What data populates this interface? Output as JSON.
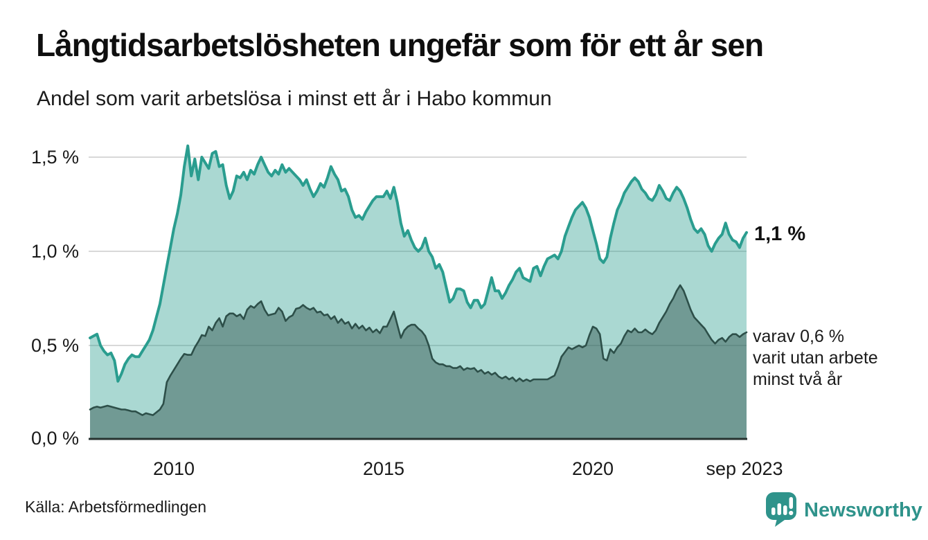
{
  "header": {
    "title": "Långtidsarbetslösheten ungefär som för ett år sen",
    "subtitle": "Andel som varit arbetslösa i minst ett år i Habo kommun"
  },
  "chart_data": {
    "type": "area",
    "title": "Långtidsarbetslösheten ungefär som för ett år sen",
    "subtitle": "Andel som varit arbetslösa i minst ett år i Habo kommun",
    "unit": "%",
    "frequency": "monthly",
    "x_start": "2008-01",
    "x_end": "2023-09",
    "ylim": [
      0,
      1.6
    ],
    "grid": true,
    "y_ticks": [
      "0,0 %",
      "0,5 %",
      "1,0 %",
      "1,5 %"
    ],
    "y_tick_values": [
      0,
      0.5,
      1.0,
      1.5
    ],
    "x_ticks": [
      "2010",
      "2015",
      "2020",
      "sep 2023"
    ],
    "series": [
      {
        "name": "Andel arbetslösa minst ett år",
        "end_value": 1.1,
        "values": [
          0.54,
          0.55,
          0.56,
          0.5,
          0.47,
          0.45,
          0.46,
          0.42,
          0.31,
          0.35,
          0.4,
          0.43,
          0.45,
          0.44,
          0.44,
          0.47,
          0.5,
          0.53,
          0.58,
          0.65,
          0.72,
          0.82,
          0.92,
          1.02,
          1.12,
          1.2,
          1.3,
          1.45,
          1.56,
          1.4,
          1.49,
          1.38,
          1.5,
          1.47,
          1.44,
          1.52,
          1.53,
          1.45,
          1.46,
          1.35,
          1.28,
          1.32,
          1.4,
          1.39,
          1.42,
          1.38,
          1.43,
          1.41,
          1.46,
          1.5,
          1.46,
          1.42,
          1.4,
          1.43,
          1.41,
          1.46,
          1.42,
          1.44,
          1.42,
          1.4,
          1.38,
          1.35,
          1.38,
          1.33,
          1.29,
          1.32,
          1.36,
          1.34,
          1.39,
          1.45,
          1.41,
          1.38,
          1.32,
          1.33,
          1.29,
          1.22,
          1.18,
          1.19,
          1.17,
          1.21,
          1.24,
          1.27,
          1.29,
          1.29,
          1.29,
          1.32,
          1.28,
          1.34,
          1.26,
          1.15,
          1.08,
          1.11,
          1.06,
          1.02,
          1.0,
          1.02,
          1.07,
          1.0,
          0.97,
          0.91,
          0.93,
          0.89,
          0.81,
          0.73,
          0.75,
          0.8,
          0.8,
          0.79,
          0.73,
          0.7,
          0.74,
          0.74,
          0.7,
          0.72,
          0.79,
          0.86,
          0.79,
          0.79,
          0.75,
          0.78,
          0.82,
          0.85,
          0.89,
          0.91,
          0.86,
          0.85,
          0.84,
          0.91,
          0.92,
          0.87,
          0.92,
          0.96,
          0.97,
          0.98,
          0.96,
          1.0,
          1.08,
          1.13,
          1.18,
          1.22,
          1.24,
          1.26,
          1.23,
          1.18,
          1.11,
          1.04,
          0.96,
          0.94,
          0.97,
          1.07,
          1.15,
          1.22,
          1.26,
          1.31,
          1.34,
          1.37,
          1.39,
          1.37,
          1.33,
          1.31,
          1.28,
          1.27,
          1.3,
          1.35,
          1.32,
          1.28,
          1.27,
          1.31,
          1.34,
          1.32,
          1.28,
          1.23,
          1.17,
          1.12,
          1.1,
          1.12,
          1.09,
          1.03,
          1.0,
          1.04,
          1.07,
          1.09,
          1.15,
          1.09,
          1.06,
          1.05,
          1.02,
          1.07,
          1.1
        ]
      },
      {
        "name": "varav utan arbete minst två år",
        "end_value": 0.6,
        "values": [
          0.16,
          0.17,
          0.175,
          0.17,
          0.175,
          0.18,
          0.175,
          0.17,
          0.165,
          0.16,
          0.16,
          0.155,
          0.15,
          0.15,
          0.14,
          0.13,
          0.14,
          0.135,
          0.13,
          0.145,
          0.16,
          0.19,
          0.305,
          0.34,
          0.37,
          0.4,
          0.43,
          0.455,
          0.45,
          0.45,
          0.49,
          0.52,
          0.555,
          0.55,
          0.6,
          0.58,
          0.62,
          0.645,
          0.6,
          0.655,
          0.67,
          0.67,
          0.655,
          0.665,
          0.64,
          0.69,
          0.71,
          0.7,
          0.72,
          0.735,
          0.69,
          0.66,
          0.665,
          0.67,
          0.7,
          0.68,
          0.63,
          0.65,
          0.66,
          0.695,
          0.7,
          0.715,
          0.7,
          0.69,
          0.7,
          0.675,
          0.68,
          0.66,
          0.665,
          0.64,
          0.655,
          0.62,
          0.64,
          0.615,
          0.625,
          0.59,
          0.615,
          0.59,
          0.605,
          0.58,
          0.595,
          0.57,
          0.585,
          0.565,
          0.6,
          0.6,
          0.64,
          0.68,
          0.61,
          0.54,
          0.58,
          0.6,
          0.61,
          0.61,
          0.59,
          0.575,
          0.55,
          0.5,
          0.43,
          0.41,
          0.4,
          0.4,
          0.39,
          0.39,
          0.38,
          0.38,
          0.39,
          0.37,
          0.38,
          0.375,
          0.38,
          0.36,
          0.37,
          0.35,
          0.36,
          0.345,
          0.355,
          0.335,
          0.325,
          0.335,
          0.32,
          0.33,
          0.31,
          0.325,
          0.31,
          0.32,
          0.31,
          0.32,
          0.32,
          0.32,
          0.32,
          0.32,
          0.33,
          0.34,
          0.385,
          0.44,
          0.465,
          0.49,
          0.48,
          0.49,
          0.5,
          0.49,
          0.5,
          0.555,
          0.6,
          0.59,
          0.56,
          0.43,
          0.42,
          0.48,
          0.46,
          0.49,
          0.51,
          0.55,
          0.58,
          0.57,
          0.59,
          0.57,
          0.57,
          0.585,
          0.57,
          0.56,
          0.58,
          0.62,
          0.65,
          0.68,
          0.72,
          0.75,
          0.79,
          0.82,
          0.79,
          0.74,
          0.69,
          0.65,
          0.63,
          0.61,
          0.59,
          0.56,
          0.53,
          0.51,
          0.53,
          0.54,
          0.52,
          0.545,
          0.56,
          0.56,
          0.545,
          0.56,
          0.57
        ]
      }
    ],
    "annotations": {
      "end_label": "1,1 %",
      "sub_label_lines": [
        "varav 0,6 %",
        "varit utan arbete",
        "minst två år"
      ]
    },
    "colors": {
      "line_top": "#2a9d8f",
      "fill_top": "rgba(42,157,143,0.40)",
      "line_bottom": "#2d4f49",
      "fill_bottom": "rgba(45,79,73,0.45)",
      "gridline": "#d8d8d8",
      "axis": "#26312f"
    },
    "legend_position": "right-annotations"
  },
  "footer": {
    "source": "Källa: Arbetsförmedlingen",
    "brand": "Newsworthy",
    "brand_color": "#2f938b"
  }
}
